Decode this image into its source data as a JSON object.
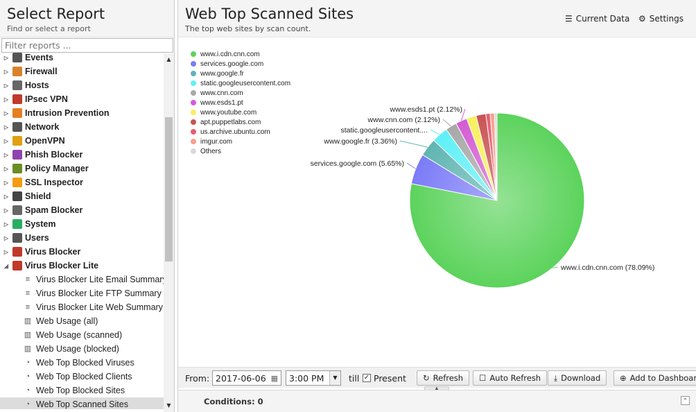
{
  "left": {
    "title": "Select Report",
    "subtitle": "Find or select a report",
    "filter_placeholder": "Filter reports ...",
    "categories": [
      {
        "label": "Events",
        "icon": "events-icon",
        "color": "#555"
      },
      {
        "label": "Firewall",
        "icon": "firewall-icon",
        "color": "#d9822b"
      },
      {
        "label": "Hosts",
        "icon": "hosts-icon",
        "color": "#666"
      },
      {
        "label": "IPsec VPN",
        "icon": "lock-icon",
        "color": "#c0392b"
      },
      {
        "label": "Intrusion Prevention",
        "icon": "intrusion-icon",
        "color": "#e67e22"
      },
      {
        "label": "Network",
        "icon": "network-icon",
        "color": "#555"
      },
      {
        "label": "OpenVPN",
        "icon": "openvpn-icon",
        "color": "#e0a010"
      },
      {
        "label": "Phish Blocker",
        "icon": "phish-icon",
        "color": "#8e44ad"
      },
      {
        "label": "Policy Manager",
        "icon": "policy-icon",
        "color": "#6b8e23"
      },
      {
        "label": "SSL Inspector",
        "icon": "ssl-icon",
        "color": "#f39c12"
      },
      {
        "label": "Shield",
        "icon": "shield-icon",
        "color": "#444"
      },
      {
        "label": "Spam Blocker",
        "icon": "spam-icon",
        "color": "#666"
      },
      {
        "label": "System",
        "icon": "system-icon",
        "color": "#27ae60"
      },
      {
        "label": "Users",
        "icon": "users-icon",
        "color": "#555"
      },
      {
        "label": "Virus Blocker",
        "icon": "virus-icon",
        "color": "#c0392b"
      },
      {
        "label": "Virus Blocker Lite",
        "icon": "virus-lite-icon",
        "color": "#c0392b"
      }
    ],
    "reports": [
      {
        "label": "Virus Blocker Lite Email Summary",
        "icon": "text-icon"
      },
      {
        "label": "Virus Blocker Lite FTP Summary",
        "icon": "text-icon"
      },
      {
        "label": "Virus Blocker Lite Web Summary",
        "icon": "text-icon"
      },
      {
        "label": "Web Usage (all)",
        "icon": "bar-chart-icon"
      },
      {
        "label": "Web Usage (scanned)",
        "icon": "bar-chart-icon"
      },
      {
        "label": "Web Usage (blocked)",
        "icon": "bar-chart-icon"
      },
      {
        "label": "Web Top Blocked Viruses",
        "icon": "pie-chart-icon"
      },
      {
        "label": "Web Top Blocked Clients",
        "icon": "pie-chart-icon"
      },
      {
        "label": "Web Top Blocked Sites",
        "icon": "pie-chart-icon"
      },
      {
        "label": "Web Top Scanned Sites",
        "icon": "pie-chart-icon",
        "selected": true
      }
    ]
  },
  "report": {
    "title": "Web Top Scanned Sites",
    "subtitle": "The top web sites by scan count.",
    "current_data_label": "Current Data",
    "settings_label": "Settings"
  },
  "chart_data": {
    "type": "pie",
    "series": [
      {
        "name": "www.i.cdn.cnn.com",
        "value": 78.09,
        "color": "#5cd35c",
        "label": "www.i.cdn.cnn.com (78.09%)"
      },
      {
        "name": "services.google.com",
        "value": 5.65,
        "color": "#7b7bf7",
        "label": "services.google.com (5.65%)"
      },
      {
        "name": "www.google.fr",
        "value": 3.36,
        "color": "#5fb5b2",
        "label": "www.google.fr (3.36%)"
      },
      {
        "name": "static.googleusercontent.com",
        "value": 3.0,
        "color": "#5ef0f7",
        "label": "static.googleusercontent...."
      },
      {
        "name": "www.cnn.com",
        "value": 2.12,
        "color": "#a8a8a8",
        "label": "www.cnn.com (2.12%)"
      },
      {
        "name": "www.esds1.pt",
        "value": 2.12,
        "color": "#d35cd3",
        "label": "www.esds1.pt (2.12%)"
      },
      {
        "name": "www.youtube.com",
        "value": 1.8,
        "color": "#f7f05e",
        "label": ""
      },
      {
        "name": "apt.puppetlabs.com",
        "value": 1.8,
        "color": "#c95353",
        "label": ""
      },
      {
        "name": "us.archive.ubuntu.com",
        "value": 0.8,
        "color": "#e85c70",
        "label": ""
      },
      {
        "name": "imgur.com",
        "value": 0.8,
        "color": "#f7a090",
        "label": ""
      },
      {
        "name": "Others",
        "value": 0.46,
        "color": "#d8d8d8",
        "label": "",
        "legend_off": true
      }
    ]
  },
  "toolbar": {
    "from_label": "From:",
    "date": "2017-06-06",
    "time": "3:00 PM",
    "till_label": "till",
    "present_label": "Present",
    "refresh_label": "Refresh",
    "auto_refresh_label": "Auto Refresh",
    "download_label": "Download",
    "add_dashboard_label": "Add to Dashboar"
  },
  "conditions": {
    "label": "Conditions: 0"
  }
}
